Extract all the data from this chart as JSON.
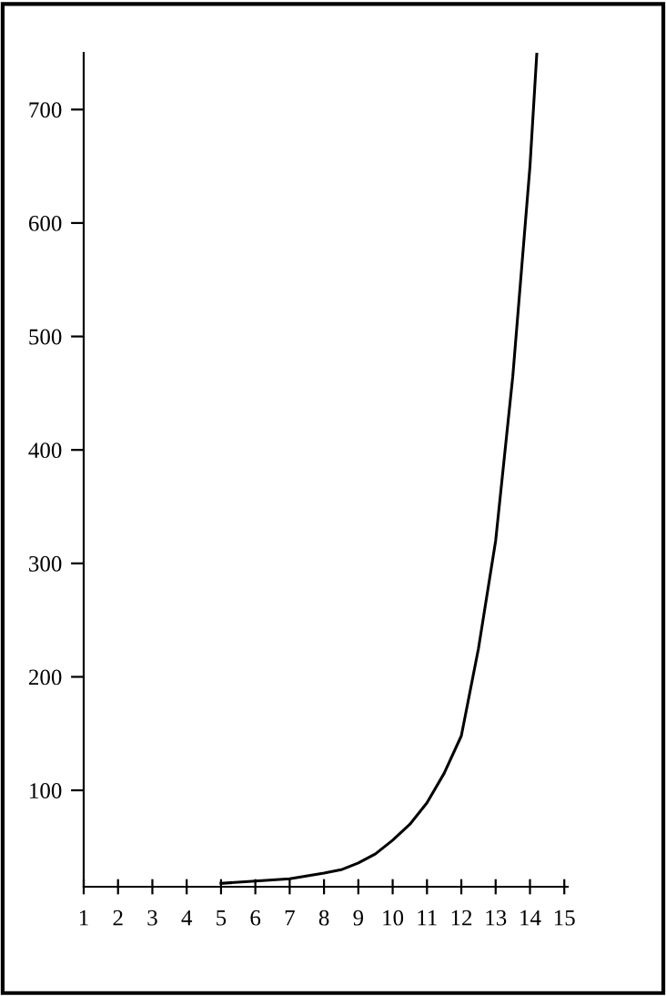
{
  "chart_data": {
    "type": "line",
    "x": [
      5,
      6,
      7,
      8,
      8.5,
      9,
      9.5,
      10,
      10.5,
      11,
      11.5,
      12,
      12.5,
      13,
      13.5,
      14,
      14.2
    ],
    "series": [
      {
        "color": "#000000",
        "values": [
          18,
          20,
          22,
          27,
          30,
          36,
          44,
          56,
          70,
          89,
          115,
          148,
          225,
          320,
          465,
          650,
          750
        ]
      }
    ],
    "xlim": [
      1,
      15.1
    ],
    "ylim": [
      15,
      750
    ],
    "xticks": [
      1,
      2,
      3,
      4,
      5,
      6,
      7,
      8,
      9,
      10,
      11,
      12,
      13,
      14,
      15
    ],
    "yticks": [
      100,
      200,
      300,
      400,
      500,
      600,
      700
    ],
    "grid": false,
    "legend": false,
    "marker": "none",
    "line_style": "solid"
  }
}
